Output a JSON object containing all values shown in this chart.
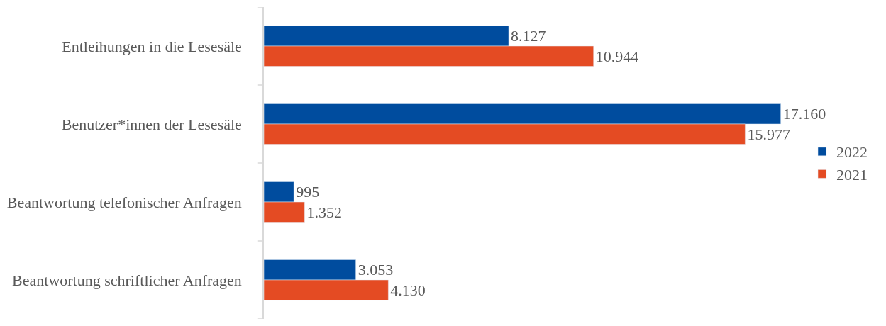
{
  "chart_data": {
    "type": "bar",
    "orientation": "horizontal",
    "categories": [
      "Entleihungen in die Lesesäle",
      "Benutzer*innen der Lesesäle",
      "Beantwortung telefonischer Anfragen",
      "Beantwortung schriftlicher Anfragen"
    ],
    "series": [
      {
        "name": "2022",
        "color": "#004c9e",
        "values": [
          8127,
          17160,
          995,
          3053
        ],
        "value_labels": [
          "8.127",
          "17.160",
          "995",
          "3.053"
        ]
      },
      {
        "name": "2021",
        "color": "#e44b23",
        "values": [
          10944,
          15977,
          1352,
          4130
        ],
        "value_labels": [
          "10.944",
          "15.977",
          "1.352",
          "4.130"
        ]
      }
    ],
    "legend": "right"
  }
}
